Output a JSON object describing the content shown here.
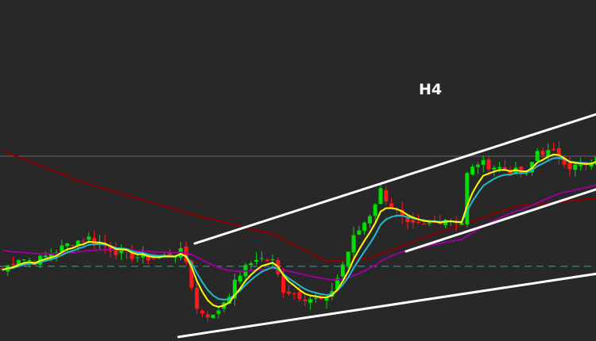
{
  "chart_data": {
    "type": "candlestick",
    "timeframe_label": "H4",
    "ylim": [
      0,
      100
    ],
    "grid": false,
    "bar_count": 111,
    "close_path": [
      [
        0,
        20.9
      ],
      [
        3,
        24.4
      ],
      [
        6,
        23.3
      ],
      [
        9,
        25.6
      ],
      [
        13,
        29.1
      ],
      [
        16,
        30.2
      ],
      [
        19,
        27.9
      ],
      [
        22,
        25.6
      ],
      [
        26,
        24.4
      ],
      [
        29,
        24.4
      ],
      [
        33,
        26.0
      ],
      [
        34,
        23.3
      ],
      [
        36,
        9.3
      ],
      [
        39,
        7.0
      ],
      [
        42,
        14.0
      ],
      [
        44,
        19.8
      ],
      [
        47,
        24.4
      ],
      [
        50,
        23.3
      ],
      [
        52,
        15.1
      ],
      [
        56,
        12.8
      ],
      [
        60,
        11.6
      ],
      [
        62,
        18.6
      ],
      [
        65,
        30.2
      ],
      [
        68,
        37.2
      ],
      [
        70,
        44.2
      ],
      [
        72,
        39.5
      ],
      [
        75,
        33.7
      ],
      [
        78,
        33.7
      ],
      [
        82,
        36.0
      ],
      [
        85,
        34.9
      ],
      [
        86,
        48.8
      ],
      [
        88,
        52.3
      ],
      [
        91,
        51.2
      ],
      [
        94,
        50.0
      ],
      [
        97,
        48.8
      ],
      [
        99,
        55.8
      ],
      [
        103,
        54.7
      ],
      [
        105,
        51.2
      ],
      [
        109,
        51.2
      ],
      [
        110,
        54.7
      ]
    ],
    "slow_ma_path": [
      [
        0,
        55.8
      ],
      [
        15,
        46.5
      ],
      [
        35,
        37.2
      ],
      [
        50,
        31.4
      ],
      [
        60,
        23.3
      ],
      [
        68,
        24.4
      ],
      [
        80,
        31.4
      ],
      [
        95,
        39.5
      ],
      [
        110,
        41.9
      ]
    ],
    "moving_averages": [
      {
        "period": 5,
        "color": "#ffff00"
      },
      {
        "period": 8,
        "color": "#22bbcc"
      },
      {
        "period": 40,
        "color": "#990099"
      }
    ],
    "horizontal_levels": [
      {
        "price": 54.2,
        "style": "solid",
        "color": "#5a6068"
      },
      {
        "price": 21.9,
        "style": "dashed",
        "color": "#2a9a9a"
      }
    ],
    "trendlines": [
      {
        "from": [
          35.6,
          28.6
        ],
        "to": [
          110.3,
          66.7
        ],
        "color": "#ffffff"
      },
      {
        "from": [
          74.7,
          26.3
        ],
        "to": [
          110.3,
          44.7
        ],
        "color": "#ffffff"
      },
      {
        "from": [
          32.6,
          1.2
        ],
        "to": [
          110.3,
          19.8
        ],
        "color": "#ffffff"
      }
    ],
    "colors": {
      "up": "#00dd00",
      "down": "#ff1a1a",
      "slow_ma": "#8b0000",
      "background": "#282828"
    }
  }
}
